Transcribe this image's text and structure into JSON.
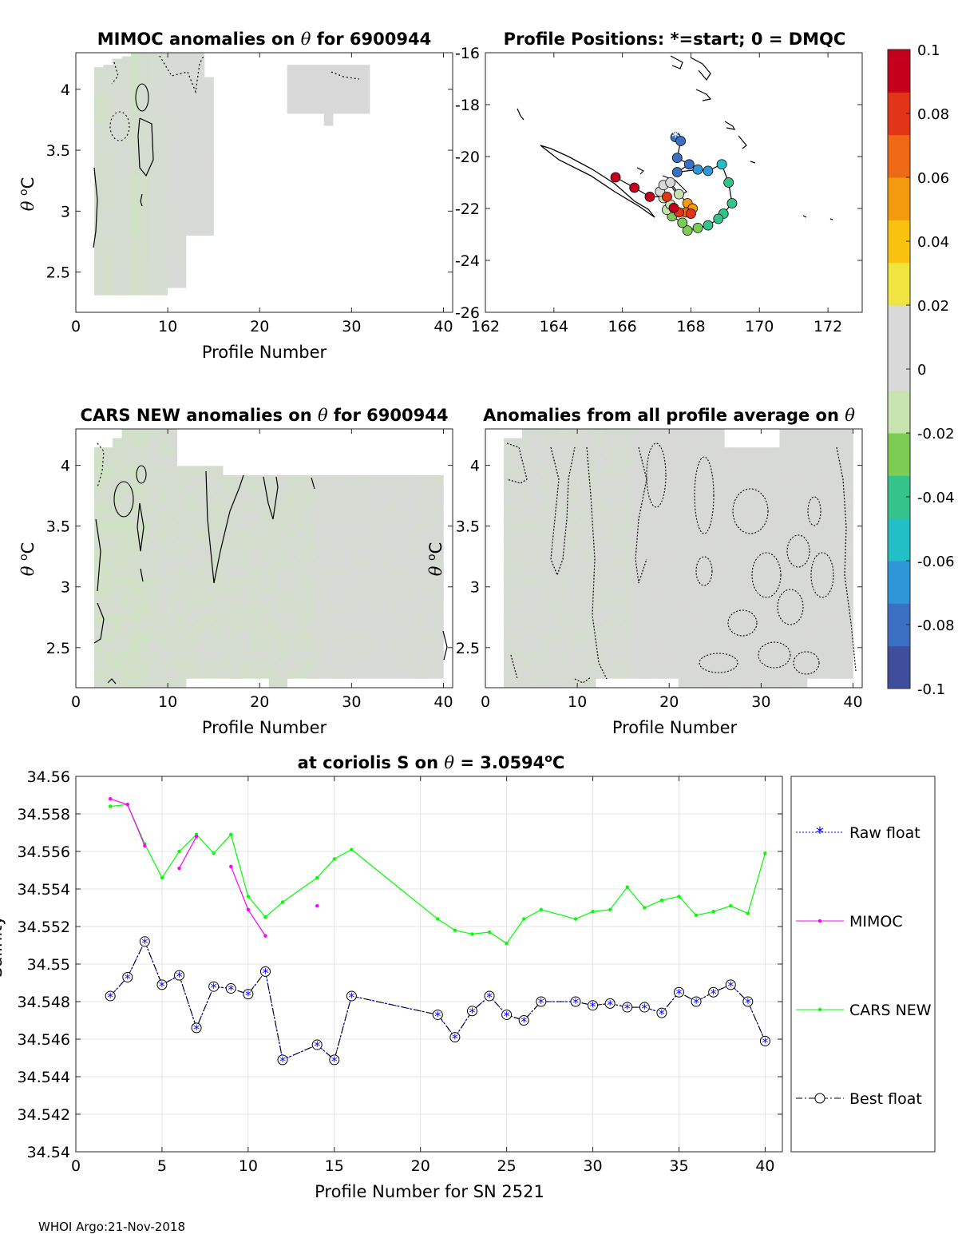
{
  "footer": "WHOI Argo:21-Nov-2018",
  "colors": {
    "raw_float": "#0000ff",
    "mimoc": "#ff00ff",
    "cars_new": "#00ff00",
    "best_float": "#000000",
    "grid": "#e5e5e5",
    "anomaly_gray": "#d8d8d8",
    "anomaly_green": "#d6e8c6"
  },
  "chart_data": [
    {
      "id": "mimoc",
      "type": "heatmap",
      "title_parts": [
        "MIMOC anomalies on ",
        "θ",
        "  for 6900944"
      ],
      "xlabel": "Profile Number",
      "ylabel": "θ °C",
      "xlim": [
        0,
        41
      ],
      "ylim": [
        2.17,
        4.3
      ],
      "xticks": [
        0,
        10,
        20,
        30,
        40
      ],
      "yticks": [
        2.5,
        3,
        3.5,
        4
      ],
      "columns": [
        {
          "x0": 2,
          "x1": 3,
          "ylo": 2.31,
          "yhi": 4.18,
          "tone": 0.5
        },
        {
          "x0": 3,
          "x1": 4,
          "ylo": 2.31,
          "yhi": 4.2,
          "tone": 0.4
        },
        {
          "x0": 4,
          "x1": 5,
          "ylo": 2.31,
          "yhi": 4.25,
          "tone": 0.3
        },
        {
          "x0": 5,
          "x1": 6,
          "ylo": 2.31,
          "yhi": 4.27,
          "tone": 0.3
        },
        {
          "x0": 6,
          "x1": 7,
          "ylo": 2.31,
          "yhi": 4.3,
          "tone": 0.6
        },
        {
          "x0": 7,
          "x1": 8,
          "ylo": 2.31,
          "yhi": 4.3,
          "tone": 0.4
        },
        {
          "x0": 8,
          "x1": 10,
          "ylo": 2.31,
          "yhi": 4.3,
          "tone": 0.25
        },
        {
          "x0": 10,
          "x1": 12,
          "ylo": 2.37,
          "yhi": 4.3,
          "tone": 0.1
        },
        {
          "x0": 12,
          "x1": 14,
          "ylo": 2.8,
          "yhi": 4.3,
          "tone": 0.1
        },
        {
          "x0": 14,
          "x1": 15,
          "ylo": 2.8,
          "yhi": 4.1,
          "tone": 0.05
        },
        {
          "x0": 23,
          "x1": 27,
          "ylo": 3.8,
          "yhi": 4.2,
          "tone": 0
        },
        {
          "x0": 27,
          "x1": 28,
          "ylo": 3.7,
          "yhi": 4.2,
          "tone": 0
        },
        {
          "x0": 28,
          "x1": 32,
          "ylo": 3.8,
          "yhi": 4.2,
          "tone": 0
        }
      ]
    },
    {
      "id": "positions",
      "type": "scatter",
      "title": "Profile Positions: *=start; 0 = DMQC",
      "xlim": [
        162,
        173
      ],
      "ylim": [
        -26,
        -16
      ],
      "xticks": [
        162,
        164,
        166,
        168,
        170,
        172
      ],
      "yticks": [
        -16,
        -18,
        -20,
        -22,
        -24,
        -26
      ],
      "track": [
        [
          167.55,
          -19.25,
          -0.09
        ],
        [
          167.7,
          -19.4,
          -0.08
        ],
        [
          167.6,
          -20.05,
          -0.085
        ],
        [
          167.95,
          -20.3,
          -0.08
        ],
        [
          167.6,
          -20.6,
          -0.08
        ],
        [
          168.2,
          -20.5,
          -0.075
        ],
        [
          168.5,
          -20.55,
          -0.07
        ],
        [
          168.9,
          -20.3,
          -0.055
        ],
        [
          169.1,
          -21.0,
          -0.05
        ],
        [
          169.2,
          -21.8,
          -0.05
        ],
        [
          168.95,
          -22.2,
          -0.045
        ],
        [
          168.8,
          -22.4,
          -0.04
        ],
        [
          168.5,
          -22.65,
          -0.04
        ],
        [
          168.2,
          -22.75,
          -0.035
        ],
        [
          167.9,
          -22.85,
          -0.035
        ],
        [
          167.75,
          -22.55,
          -0.03
        ],
        [
          167.45,
          -22.3,
          -0.025
        ],
        [
          167.3,
          -22.05,
          -0.02
        ],
        [
          167.4,
          -21.85,
          -0.015
        ],
        [
          167.2,
          -21.6,
          -0.01
        ],
        [
          167.1,
          -21.35,
          0.015
        ],
        [
          167.2,
          -21.1,
          0.02
        ],
        [
          167.4,
          -21.0,
          0.02
        ],
        [
          167.65,
          -21.45,
          -0.01
        ],
        [
          167.9,
          -21.8,
          0.05
        ],
        [
          168.05,
          -22.0,
          0.06
        ],
        [
          167.85,
          -22.15,
          0.07
        ],
        [
          168.0,
          -22.2,
          0.08
        ],
        [
          167.65,
          -22.15,
          0.09
        ],
        [
          167.5,
          -21.98,
          0.1
        ],
        [
          167.3,
          -21.55,
          0.09
        ],
        [
          166.8,
          -21.55,
          0.095
        ],
        [
          166.35,
          -21.2,
          0.1
        ],
        [
          165.8,
          -20.8,
          0.1
        ],
        [
          167.55,
          -19.25,
          0.0
        ]
      ]
    },
    {
      "id": "cars",
      "type": "heatmap",
      "title_parts": [
        "CARS NEW anomalies on ",
        "θ",
        " for 6900944"
      ],
      "xlabel": "Profile Number",
      "ylabel": "θ °C",
      "xlim": [
        0,
        41
      ],
      "ylim": [
        2.17,
        4.3
      ],
      "xticks": [
        0,
        10,
        20,
        30,
        40
      ],
      "yticks": [
        2.5,
        3,
        3.5,
        4
      ]
    },
    {
      "id": "allprof",
      "type": "heatmap",
      "title_parts": [
        "Anomalies from all profile average on ",
        "θ"
      ],
      "xlabel": "Profile Number",
      "ylabel": "θ °C",
      "xlim": [
        0,
        41
      ],
      "ylim": [
        2.17,
        4.3
      ],
      "xticks": [
        0,
        10,
        20,
        30,
        40
      ],
      "yticks": [
        2.5,
        3,
        3.5,
        4
      ]
    },
    {
      "id": "salinity",
      "type": "line",
      "title_parts": [
        "at coriolis S on ",
        "θ",
        " = 3.0594",
        "o",
        "C"
      ],
      "xlabel": "Profile Number for SN 2521",
      "ylabel": "Salinity",
      "xlim": [
        0,
        41
      ],
      "ylim": [
        34.54,
        34.56
      ],
      "xticks": [
        0,
        5,
        10,
        15,
        20,
        25,
        30,
        35,
        40
      ],
      "yticks": [
        34.54,
        34.542,
        34.544,
        34.546,
        34.548,
        34.55,
        34.552,
        34.554,
        34.556,
        34.558,
        34.56
      ],
      "ytick_labels": [
        "34.54",
        "34.542",
        "34.544",
        "34.546",
        "34.548",
        "34.55",
        "34.552",
        "34.554",
        "34.556",
        "34.558",
        "34.56"
      ],
      "grid": true,
      "legend_position": "outside-right",
      "series": [
        {
          "name": "Raw float",
          "style": "raw",
          "x": [
            2,
            3,
            4,
            5,
            6,
            7,
            8,
            9,
            10,
            11,
            12,
            14,
            15,
            16,
            21,
            22,
            23,
            24,
            25,
            26,
            27,
            29,
            30,
            31,
            32,
            33,
            34,
            35,
            36,
            37,
            38,
            39,
            40
          ],
          "y": [
            34.5483,
            34.5493,
            34.5512,
            34.5489,
            34.5494,
            34.5466,
            34.5488,
            34.5487,
            34.5484,
            34.5496,
            34.5449,
            34.5457,
            34.5449,
            34.5483,
            34.5473,
            34.5461,
            34.5475,
            34.5483,
            34.5473,
            34.547,
            34.548,
            34.548,
            34.5478,
            34.5479,
            34.5477,
            34.5477,
            34.5474,
            34.5485,
            34.548,
            34.5485,
            34.5489,
            34.548,
            34.5459
          ]
        },
        {
          "name": "MIMOC",
          "style": "mimoc",
          "segments": [
            {
              "x": [
                2,
                3,
                4
              ],
              "y": [
                34.5588,
                34.5585,
                34.5563
              ]
            },
            {
              "x": [
                6,
                7
              ],
              "y": [
                34.5551,
                34.5568
              ]
            },
            {
              "x": [
                9,
                10,
                11
              ],
              "y": [
                34.5552,
                34.5529,
                34.5515
              ]
            },
            {
              "x": [
                14
              ],
              "y": [
                34.5531
              ]
            }
          ]
        },
        {
          "name": "CARS NEW",
          "style": "cars",
          "x": [
            2,
            3,
            4,
            5,
            6,
            7,
            8,
            9,
            10,
            11,
            12,
            14,
            15,
            16,
            21,
            22,
            23,
            24,
            25,
            26,
            27,
            29,
            30,
            31,
            32,
            33,
            34,
            35,
            36,
            37,
            38,
            39,
            40
          ],
          "y": [
            34.5584,
            34.5585,
            34.5564,
            34.5546,
            34.556,
            34.5569,
            34.5559,
            34.5569,
            34.5536,
            34.5525,
            34.5533,
            34.5546,
            34.5556,
            34.5561,
            34.5524,
            34.5518,
            34.5516,
            34.5517,
            34.5511,
            34.5524,
            34.5529,
            34.5524,
            34.5528,
            34.5529,
            34.5541,
            34.553,
            34.5534,
            34.5536,
            34.5526,
            34.5528,
            34.5531,
            34.5527,
            34.5559
          ]
        },
        {
          "name": "Best float",
          "style": "best",
          "x": [
            2,
            3,
            4,
            5,
            6,
            7,
            8,
            9,
            10,
            11,
            12,
            14,
            15,
            16,
            21,
            22,
            23,
            24,
            25,
            26,
            27,
            29,
            30,
            31,
            32,
            33,
            34,
            35,
            36,
            37,
            38,
            39,
            40
          ],
          "y": [
            34.5483,
            34.5493,
            34.5512,
            34.5489,
            34.5494,
            34.5466,
            34.5488,
            34.5487,
            34.5484,
            34.5496,
            34.5449,
            34.5457,
            34.5449,
            34.5483,
            34.5473,
            34.5461,
            34.5475,
            34.5483,
            34.5473,
            34.547,
            34.548,
            34.548,
            34.5478,
            34.5479,
            34.5477,
            34.5477,
            34.5474,
            34.5485,
            34.548,
            34.5485,
            34.5489,
            34.548,
            34.5459
          ]
        }
      ]
    },
    {
      "id": "colorbar",
      "type": "colorbar",
      "range": [
        -0.1,
        0.1
      ],
      "ticks": [
        0.1,
        0.08,
        0.06,
        0.04,
        0.02,
        0,
        -0.02,
        -0.04,
        -0.06,
        -0.08,
        -0.1
      ],
      "tick_labels": [
        "0.1",
        "0.08",
        "0.06",
        "0.04",
        "0.02",
        "0",
        "-0.02",
        "-0.04",
        "-0.06",
        "-0.08",
        "-0.1"
      ],
      "stops": [
        "#3f4d9d",
        "#3a6fc2",
        "#2f97d8",
        "#23bfc7",
        "#35c38b",
        "#7dcc53",
        "#c6e3b0",
        "#d9d9d9",
        "#d9d9d9",
        "#f0e440",
        "#f8c20e",
        "#f49a0f",
        "#ee6816",
        "#e23517",
        "#c4001c"
      ]
    }
  ]
}
